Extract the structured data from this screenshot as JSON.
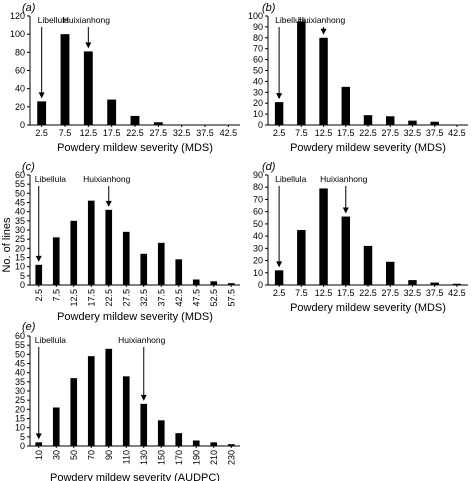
{
  "figure": {
    "ylabel": "No. of lines"
  },
  "chart_data": [
    {
      "type": "bar",
      "panel_label": "(a)",
      "xlabel": "Powdery mildew severity (MDS)",
      "ylabel": "",
      "categories": [
        "2.5",
        "7.5",
        "12.5",
        "17.5",
        "22.5",
        "27.5",
        "32.5",
        "37.5",
        "42.5"
      ],
      "values": [
        26,
        100,
        81,
        28,
        10,
        3,
        0,
        0,
        0
      ],
      "ylim": [
        0,
        120
      ],
      "yticks": [
        0,
        20,
        40,
        60,
        80,
        100,
        120
      ],
      "grid": false,
      "annotations": [
        {
          "text": "Libellula",
          "category_index": 0
        },
        {
          "text": "Huixianhong",
          "category_index": 2
        }
      ]
    },
    {
      "type": "bar",
      "panel_label": "(b)",
      "xlabel": "Powdery mildew severity (MDS)",
      "ylabel": "",
      "categories": [
        "2.5",
        "7.5",
        "12.5",
        "17.5",
        "22.5",
        "27.5",
        "32.5",
        "37.5",
        "42.5"
      ],
      "values": [
        21,
        95,
        80,
        35,
        9,
        8,
        4,
        3,
        0
      ],
      "ylim": [
        0,
        100
      ],
      "yticks": [
        0,
        10,
        20,
        30,
        40,
        50,
        60,
        70,
        80,
        90,
        100
      ],
      "grid": false,
      "annotations": [
        {
          "text": "Libellula",
          "category_index": 0
        },
        {
          "text": "Huixianhong",
          "category_index": 2
        }
      ]
    },
    {
      "type": "bar",
      "panel_label": "(c)",
      "xlabel": "Powdery mildew severity (MDS)",
      "ylabel": "",
      "categories": [
        "2.5",
        "7.5",
        "12.5",
        "17.5",
        "22.5",
        "27.5",
        "32.5",
        "37.5",
        "42.5",
        "47.5",
        "52.5",
        "57.5"
      ],
      "values": [
        11,
        26,
        35,
        46,
        41,
        29,
        17,
        23,
        14,
        3,
        2,
        1
      ],
      "ylim": [
        0,
        60
      ],
      "yticks": [
        0,
        5,
        10,
        15,
        20,
        25,
        30,
        35,
        40,
        45,
        50,
        55,
        60
      ],
      "xtick_labels": [
        "2.5",
        "7.5",
        "12.5",
        "17.5",
        "22.5",
        "27.5",
        "32.5",
        "37.5",
        "42.5",
        "47.5",
        "52.5",
        "57.5"
      ],
      "grid": false,
      "annotations": [
        {
          "text": "Libellula",
          "category_index": 0
        },
        {
          "text": "Huixianhong",
          "category_index": 4
        }
      ]
    },
    {
      "type": "bar",
      "panel_label": "(d)",
      "xlabel": "Powdery mildew severity (MDS)",
      "ylabel": "",
      "categories": [
        "2.5",
        "7.5",
        "12.5",
        "17.5",
        "22.5",
        "27.5",
        "32.5",
        "37.5",
        "42.5"
      ],
      "values": [
        12,
        45,
        79,
        56,
        32,
        19,
        4,
        2,
        1
      ],
      "ylim": [
        0,
        90
      ],
      "yticks": [
        0,
        10,
        20,
        30,
        40,
        50,
        60,
        70,
        80,
        90
      ],
      "grid": false,
      "annotations": [
        {
          "text": "Libellula",
          "category_index": 0
        },
        {
          "text": "Huixianhong",
          "category_index": 3
        }
      ]
    },
    {
      "type": "bar",
      "panel_label": "(e)",
      "xlabel": "Powdery mildew severity (AUDPC)",
      "ylabel": "",
      "categories": [
        "10",
        "30",
        "50",
        "70",
        "90",
        "110",
        "130",
        "150",
        "170",
        "190",
        "210",
        "230"
      ],
      "values": [
        2,
        21,
        37,
        49,
        53,
        38,
        23,
        14,
        7,
        3,
        2,
        1
      ],
      "ylim": [
        0,
        60
      ],
      "yticks": [
        0,
        5,
        10,
        15,
        20,
        25,
        30,
        35,
        40,
        45,
        50,
        55,
        60
      ],
      "grid": false,
      "annotations": [
        {
          "text": "Libellula",
          "category_index": 0
        },
        {
          "text": "Huixianhong",
          "category_index": 6
        }
      ]
    }
  ]
}
